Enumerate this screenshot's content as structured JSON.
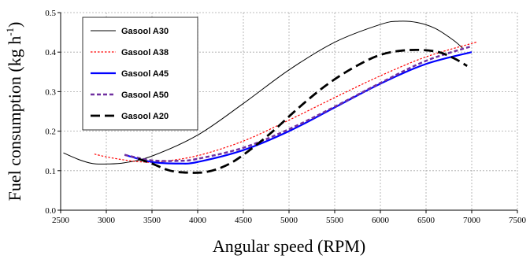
{
  "chart_data": {
    "type": "line",
    "title": "",
    "xlabel": "Angular speed (RPM)",
    "ylabel_main": "Fuel consumption (kg h",
    "ylabel_sup": "-1",
    "ylabel_close": ")",
    "xlim": [
      2500,
      7500
    ],
    "ylim": [
      0,
      0.5
    ],
    "xticks": [
      "2500",
      "3000",
      "3500",
      "4000",
      "4500",
      "5000",
      "5500",
      "6000",
      "6500",
      "7000",
      "7500"
    ],
    "yticks": [
      "0.0",
      "0.1",
      "0.2",
      "0.3",
      "0.4",
      "0.5"
    ],
    "grid": true,
    "legend_position": "top-left",
    "series": [
      {
        "name": "Gasool A30",
        "color": "#000000",
        "style": "solid-thin",
        "x": [
          2530,
          2700,
          2850,
          3000,
          3200,
          3500,
          4000,
          4500,
          5000,
          5500,
          6000,
          6200,
          6400,
          6600,
          6800,
          6900
        ],
        "y": [
          0.145,
          0.128,
          0.118,
          0.117,
          0.12,
          0.137,
          0.19,
          0.27,
          0.355,
          0.425,
          0.47,
          0.478,
          0.475,
          0.46,
          0.43,
          0.41
        ]
      },
      {
        "name": "Gasool A38",
        "color": "#ff0000",
        "style": "dotted",
        "x": [
          2870,
          3000,
          3200,
          3400,
          3600,
          4000,
          4500,
          5000,
          5500,
          6000,
          6500,
          7000,
          7050
        ],
        "y": [
          0.142,
          0.135,
          0.127,
          0.122,
          0.123,
          0.138,
          0.175,
          0.228,
          0.285,
          0.34,
          0.388,
          0.422,
          0.425
        ]
      },
      {
        "name": "Gasool A45",
        "color": "#0000ff",
        "style": "solid-thick",
        "x": [
          3200,
          3500,
          3800,
          4000,
          4500,
          5000,
          5500,
          6000,
          6500,
          7000
        ],
        "y": [
          0.14,
          0.122,
          0.118,
          0.122,
          0.152,
          0.2,
          0.26,
          0.32,
          0.37,
          0.4
        ]
      },
      {
        "name": "Gasool A50",
        "color": "#7030a0",
        "style": "dashed",
        "x": [
          3200,
          3500,
          3800,
          4000,
          4500,
          5000,
          5500,
          6000,
          6500,
          7000
        ],
        "y": [
          0.14,
          0.126,
          0.125,
          0.13,
          0.158,
          0.205,
          0.262,
          0.322,
          0.378,
          0.415
        ]
      },
      {
        "name": "Gasool A20",
        "color": "#000000",
        "style": "long-dash",
        "x": [
          3350,
          3500,
          3700,
          3900,
          4100,
          4300,
          4500,
          4800,
          5100,
          5400,
          5700,
          6000,
          6300,
          6600,
          6800,
          6950
        ],
        "y": [
          0.13,
          0.118,
          0.1,
          0.095,
          0.097,
          0.112,
          0.14,
          0.195,
          0.258,
          0.315,
          0.36,
          0.393,
          0.405,
          0.402,
          0.385,
          0.365
        ]
      }
    ]
  }
}
